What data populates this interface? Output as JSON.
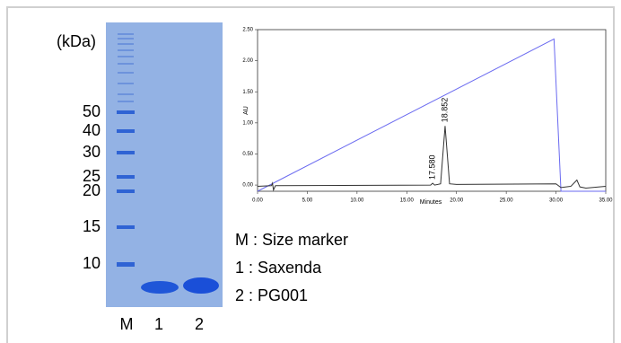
{
  "gel": {
    "unit_label": "(kDa)",
    "marker_sizes": [
      50,
      40,
      30,
      25,
      20,
      15,
      10
    ],
    "lanes": [
      "M",
      "1",
      "2"
    ]
  },
  "legend": [
    "M : Size marker",
    "1 : Saxenda",
    "2 : PG001"
  ],
  "chart_data": {
    "type": "line",
    "xlabel": "Minutes",
    "ylabel": "AU",
    "xlim": [
      0,
      35
    ],
    "ylim": [
      -0.1,
      2.5
    ],
    "xticks": [
      {
        "value": 0,
        "label": "0.00"
      },
      {
        "value": 5,
        "label": "5.00"
      },
      {
        "value": 10,
        "label": "10.00"
      },
      {
        "value": 15,
        "label": "15.00"
      },
      {
        "value": 20,
        "label": "20.00"
      },
      {
        "value": 25,
        "label": "25.00"
      },
      {
        "value": 30,
        "label": "30.00"
      },
      {
        "value": 35,
        "label": "35.00"
      }
    ],
    "yticks": [
      {
        "value": 0,
        "label": "0.00"
      },
      {
        "value": 0.5,
        "label": "0.50"
      },
      {
        "value": 1,
        "label": "1.00"
      },
      {
        "value": 1.5,
        "label": "1.50"
      },
      {
        "value": 2,
        "label": "2.00"
      },
      {
        "value": 2.5,
        "label": "2.50"
      }
    ],
    "series": [
      {
        "color": "#6a6af0",
        "x": [
          0,
          29.8,
          30.5,
          35
        ],
        "values": [
          -0.1,
          2.35,
          -0.1,
          -0.1
        ]
      },
      {
        "color": "#333333",
        "x": [
          0,
          1.4,
          1.5,
          1.6,
          1.8,
          17.4,
          17.6,
          17.8,
          18.4,
          18.85,
          19.3,
          20,
          30,
          30.5,
          31.5,
          32.1,
          32.4,
          33,
          35
        ],
        "values": [
          -0.02,
          -0.01,
          0.03,
          -0.08,
          -0.01,
          0.0,
          0.03,
          0.0,
          0.02,
          0.95,
          0.02,
          0.01,
          0.02,
          -0.04,
          -0.02,
          0.08,
          -0.03,
          -0.05,
          -0.02
        ]
      }
    ],
    "annotations": [
      {
        "label": "18.852",
        "x": 18.852,
        "y": 0.95
      },
      {
        "label": "17.580",
        "x": 17.58,
        "y": 0.03
      }
    ]
  }
}
